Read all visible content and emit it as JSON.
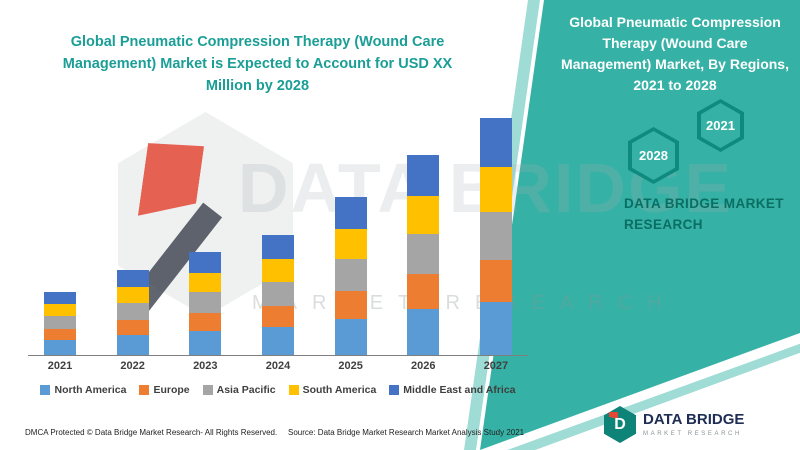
{
  "left_section": {
    "headline": "Global Pneumatic Compression Therapy (Wound Care Management) Market is Expected to Account for USD XX Million by 2028",
    "headline_color": "#1a9e96"
  },
  "right_panel": {
    "background_color": "#36b1a5",
    "stripe_color": "#9fdcd5",
    "title": "Global Pneumatic Compression Therapy (Wound Care Management) Market, By Regions, 2021 to 2028",
    "hexagon_badges": [
      {
        "label": "2021"
      },
      {
        "label": "2028"
      }
    ],
    "brand_caption": "DATA BRIDGE MARKET RESEARCH"
  },
  "chart_data": {
    "type": "bar",
    "stacked": true,
    "title": "Global Pneumatic Compression Therapy (Wound Care Management) Market is Expected to Account for USD XX Million by 2028",
    "xlabel": "",
    "ylabel": "",
    "units": "USD Million (actual values shown as XX; bar heights are relative estimates)",
    "grid": false,
    "legend_position": "bottom",
    "ylim": [
      0,
      250
    ],
    "categories": [
      "2021",
      "2022",
      "2023",
      "2024",
      "2025",
      "2026",
      "2027"
    ],
    "series": [
      {
        "name": "North America",
        "color": "#5B9BD5",
        "values": [
          15,
          20,
          24,
          28,
          36,
          46,
          53
        ]
      },
      {
        "name": "Europe",
        "color": "#ED7D31",
        "values": [
          11,
          15,
          18,
          21,
          28,
          35,
          42
        ]
      },
      {
        "name": "Asia Pacific",
        "color": "#A5A5A5",
        "values": [
          13,
          17,
          21,
          24,
          32,
          40,
          48
        ]
      },
      {
        "name": "South America",
        "color": "#FFC000",
        "values": [
          12,
          16,
          19,
          23,
          30,
          38,
          45
        ]
      },
      {
        "name": "Middle East and Africa",
        "color": "#4472C4",
        "values": [
          12,
          17,
          21,
          24,
          32,
          41,
          49
        ]
      }
    ]
  },
  "watermark": {
    "brand": "DATA BRIDGE",
    "tagline": "MARKET RESEARCH"
  },
  "footer": {
    "dmca": "DMCA Protected © Data Bridge Market Research- All Rights Reserved.",
    "source": "Source: Data Bridge Market Research Market Analysis Study 2021",
    "logo_title": "DATA BRIDGE",
    "logo_subtitle": "MARKET RESEARCH"
  }
}
